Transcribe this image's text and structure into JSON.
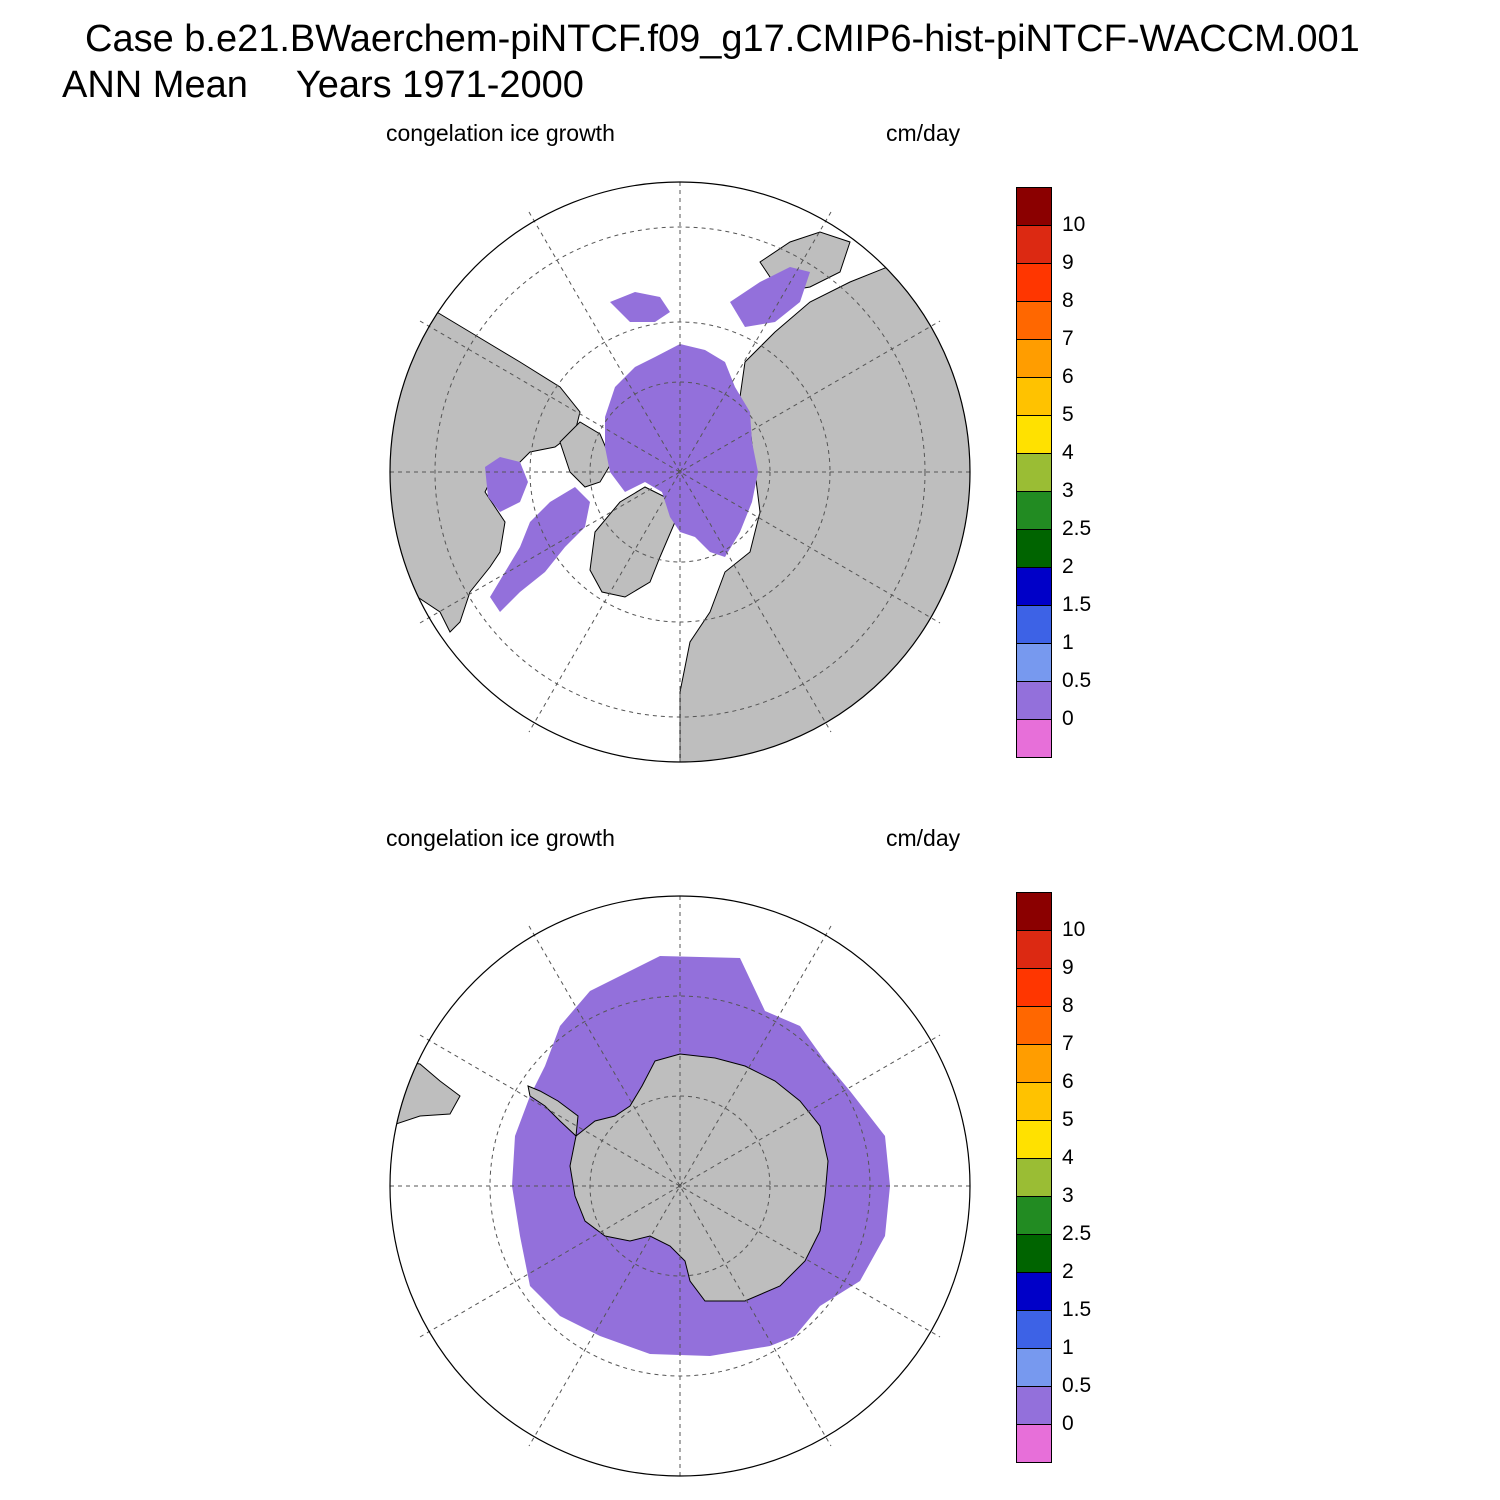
{
  "title": {
    "case": "Case b.e21.BWaerchem-piNTCF.f09_g17.CMIP6-hist-piNTCF-WACCM.001",
    "season": "ANN Mean",
    "years": "Years 1971-2000"
  },
  "colorbar": {
    "colors": [
      "#e76fd9",
      "#9370db",
      "#7799ef",
      "#3d62e6",
      "#0000c8",
      "#006400",
      "#228b22",
      "#9abd34",
      "#ffe100",
      "#ffc200",
      "#ff9d00",
      "#ff6700",
      "#ff3600",
      "#dc2912",
      "#8b0000"
    ],
    "labels": [
      "0",
      "0.5",
      "1",
      "1.5",
      "2",
      "2.5",
      "3",
      "4",
      "5",
      "6",
      "7",
      "8",
      "9",
      "10"
    ]
  },
  "panels": [
    {
      "id": "north",
      "variable": "congelation ice growth",
      "units": "cm/day",
      "hemisphere": "Northern",
      "ice_color": "#9370db",
      "land_color": "#bebebe"
    },
    {
      "id": "south",
      "variable": "congelation ice growth",
      "units": "cm/day",
      "hemisphere": "Southern",
      "ice_color": "#9370db",
      "land_color": "#bebebe"
    }
  ]
}
